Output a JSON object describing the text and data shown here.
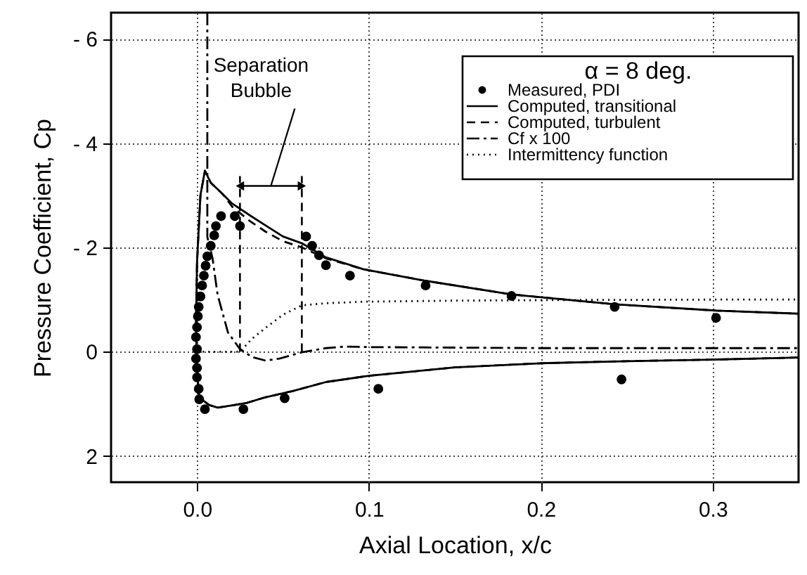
{
  "chart_data": {
    "type": "line",
    "xlabel": "Axial Location, x/c",
    "ylabel": "Pressure  Coefficient,  Cp",
    "legend_title": "α = 8 deg.",
    "xlim": [
      -0.05,
      0.35
    ],
    "xticks": [
      {
        "value": 0,
        "label": "0.0"
      },
      0.1,
      0.2,
      0.3
    ],
    "ylim": [
      2.5,
      -6.5
    ],
    "yticks": [
      {
        "value": -6,
        "label": "- 6"
      },
      {
        "value": -4,
        "label": "- 4"
      },
      {
        "value": -2,
        "label": "- 2"
      },
      0,
      2
    ],
    "grid": true,
    "legend": "top right",
    "annotations": [
      "Separation Bubble"
    ],
    "ref_lines": [
      {
        "axis": "x",
        "value": 0.025,
        "line_style": "dashed",
        "color": "#000000"
      },
      {
        "axis": "x",
        "value": 0.061,
        "line_style": "dashed",
        "color": "#000000"
      }
    ],
    "series": [
      {
        "name": "Measured, PDI",
        "type": "scatter",
        "marker": "circle",
        "color": "#000000",
        "x": [
          0.0046,
          0.0013,
          0.001,
          0.0,
          0.0,
          -0.0006,
          0.0,
          -0.0006,
          0.0,
          0.0005,
          0.001,
          0.002,
          0.003,
          0.004,
          0.005,
          0.006,
          0.008,
          0.01,
          0.011,
          0.014,
          0.022,
          0.025,
          0.027,
          0.051,
          0.0635,
          0.067,
          0.071,
          0.075,
          0.089,
          0.133,
          0.183,
          0.243,
          0.302,
          0.1055,
          0.247
        ],
        "values": [
          1.1,
          0.91,
          0.71,
          0.49,
          0.31,
          0.13,
          -0.05,
          -0.28,
          -0.47,
          -0.68,
          -0.86,
          -1.06,
          -1.27,
          -1.46,
          -1.65,
          -1.83,
          -2.03,
          -2.23,
          -2.41,
          -2.6,
          -2.6,
          -2.41,
          1.1,
          0.89,
          -2.21,
          -2.03,
          -1.85,
          -1.66,
          -1.46,
          -1.27,
          -1.07,
          -0.86,
          -0.65,
          0.71,
          0.53
        ]
      },
      {
        "name": "Computed, transitional",
        "line_style": "solid",
        "color": "#000000",
        "x": [
          0.35,
          0.3,
          0.25,
          0.2,
          0.15,
          0.1,
          0.075,
          0.056,
          0.04,
          0.029,
          0.02,
          0.012,
          0.007,
          0.003,
          0.001,
          0.0,
          -0.0006,
          0.0,
          0.002,
          0.0046,
          0.008,
          0.015,
          0.0205,
          0.031,
          0.04,
          0.05,
          0.061,
          0.075,
          0.097,
          0.133,
          0.183,
          0.243,
          0.302,
          0.35
        ],
        "values": [
          0.11,
          0.15,
          0.18,
          0.22,
          0.3,
          0.46,
          0.58,
          0.75,
          0.87,
          0.98,
          1.03,
          1.07,
          1.02,
          0.92,
          0.8,
          0.3,
          -0.5,
          -1.7,
          -3.0,
          -3.47,
          -3.24,
          -3.02,
          -2.84,
          -2.61,
          -2.42,
          -2.21,
          -2.08,
          -1.81,
          -1.58,
          -1.36,
          -1.1,
          -0.91,
          -0.79,
          -0.73
        ]
      },
      {
        "name": "Computed, turbulent",
        "line_style": "dashed",
        "color": "#000000",
        "x": [
          0.35,
          0.3,
          0.25,
          0.2,
          0.15,
          0.1,
          0.075,
          0.056,
          0.04,
          0.029,
          0.02,
          0.012,
          0.007,
          0.003,
          0.001,
          0.0,
          -0.0006,
          0.0,
          0.002,
          0.0046,
          0.008,
          0.015,
          0.0205,
          0.031,
          0.04,
          0.05,
          0.061,
          0.075,
          0.097,
          0.133,
          0.183,
          0.243,
          0.302,
          0.35
        ],
        "values": [
          0.11,
          0.15,
          0.18,
          0.22,
          0.3,
          0.46,
          0.58,
          0.75,
          0.87,
          0.98,
          1.03,
          1.07,
          1.02,
          0.92,
          0.8,
          0.3,
          -0.5,
          -1.7,
          -3.0,
          -3.47,
          -3.24,
          -3.02,
          -2.78,
          -2.5,
          -2.3,
          -2.12,
          -2.0,
          -1.79,
          -1.58,
          -1.36,
          -1.1,
          -0.91,
          -0.79,
          -0.73
        ]
      },
      {
        "name": "Cf x 100",
        "line_style": "dashdot",
        "color": "#000000",
        "x": [
          0.006,
          0.006,
          0.009,
          0.012,
          0.018,
          0.025,
          0.032,
          0.04,
          0.048,
          0.061,
          0.075,
          0.086,
          0.1,
          0.2,
          0.3,
          0.35
        ],
        "values": [
          -6.5,
          -2.2,
          -1.8,
          -1.09,
          -0.37,
          -0.05,
          0.1,
          0.17,
          0.13,
          0.01,
          -0.07,
          -0.1,
          -0.09,
          -0.07,
          -0.07,
          -0.07
        ]
      },
      {
        "name": "Intermittency function",
        "line_style": "dotted",
        "color": "#000000",
        "x": [
          0.0,
          0.025,
          0.032,
          0.04,
          0.05,
          0.061,
          0.075,
          0.097,
          0.15,
          0.2,
          0.3,
          0.35
        ],
        "values": [
          0,
          0,
          -0.25,
          -0.46,
          -0.71,
          -0.89,
          -0.93,
          -0.96,
          -0.98,
          -0.99,
          -1.0,
          -1.0
        ]
      }
    ]
  }
}
